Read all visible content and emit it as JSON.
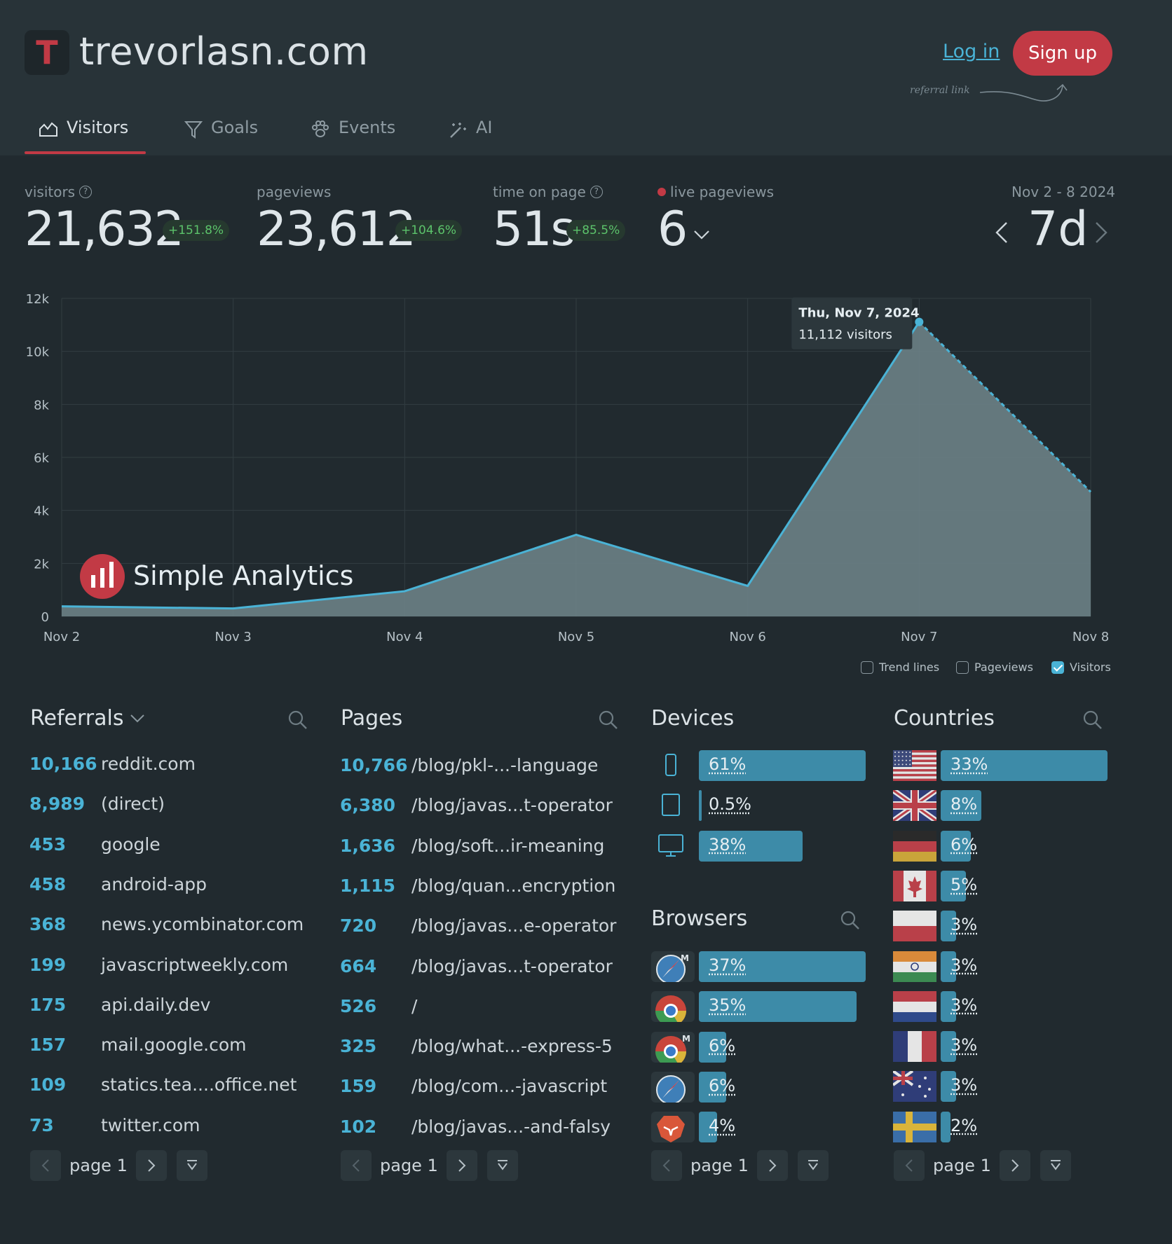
{
  "header": {
    "logo_letter": "T",
    "site": "trevorlasn.com",
    "login": "Log in",
    "signup": "Sign up",
    "referral_note": "referral link"
  },
  "tabs": [
    {
      "label": "Visitors",
      "icon": "chart-icon",
      "active": true
    },
    {
      "label": "Goals",
      "icon": "filter-icon"
    },
    {
      "label": "Events",
      "icon": "paw-icon"
    },
    {
      "label": "AI",
      "icon": "magic-wand-icon"
    }
  ],
  "stats": {
    "visitors": {
      "label": "visitors",
      "value": "21,632",
      "change": "+151.8%"
    },
    "pageviews": {
      "label": "pageviews",
      "value": "23,612",
      "change": "+104.6%"
    },
    "time_on_page": {
      "label": "time on page",
      "value": "51s",
      "change": "+85.5%"
    },
    "live": {
      "label": "live pageviews",
      "value": "6"
    },
    "date_range": "Nov 2 - 8 2024",
    "range": "7d"
  },
  "chart_data": {
    "type": "area",
    "x": [
      "Nov 2",
      "Nov 3",
      "Nov 4",
      "Nov 5",
      "Nov 6",
      "Nov 7",
      "Nov 8"
    ],
    "series": [
      {
        "values": [
          380,
          300,
          950,
          3080,
          1150,
          11112,
          4700
        ]
      }
    ],
    "ylim": [
      0,
      12000
    ],
    "yticks": [
      "0",
      "2k",
      "4k",
      "6k",
      "8k",
      "10k",
      "12k"
    ],
    "grid": true,
    "tooltip": {
      "title": "Thu, Nov 7, 2024",
      "text": "11,112 visitors"
    },
    "watermark": "Simple Analytics"
  },
  "legend": {
    "trend": "Trend lines",
    "pageviews": "Pageviews",
    "visitors": "Visitors"
  },
  "referrals": {
    "title": "Referrals",
    "rows": [
      {
        "count": "10,166",
        "label": "reddit.com"
      },
      {
        "count": "8,989",
        "label": "(direct)"
      },
      {
        "count": "453",
        "label": "google"
      },
      {
        "count": "458",
        "label": "android-app"
      },
      {
        "count": "368",
        "label": "news.ycombinator.com"
      },
      {
        "count": "199",
        "label": "javascriptweekly.com"
      },
      {
        "count": "175",
        "label": "api.daily.dev"
      },
      {
        "count": "157",
        "label": "mail.google.com"
      },
      {
        "count": "109",
        "label": "statics.tea....office.net"
      },
      {
        "count": "73",
        "label": "twitter.com"
      }
    ]
  },
  "pages": {
    "title": "Pages",
    "rows": [
      {
        "count": "10,766",
        "label": "/blog/pkl-...-language"
      },
      {
        "count": "6,380",
        "label": "/blog/javas...t-operator"
      },
      {
        "count": "1,636",
        "label": "/blog/soft...ir-meaning"
      },
      {
        "count": "1,115",
        "label": "/blog/quan...encryption"
      },
      {
        "count": "720",
        "label": "/blog/javas...e-operator"
      },
      {
        "count": "664",
        "label": "/blog/javas...t-operator"
      },
      {
        "count": "526",
        "label": "/"
      },
      {
        "count": "325",
        "label": "/blog/what...-express-5"
      },
      {
        "count": "159",
        "label": "/blog/com...-javascript"
      },
      {
        "count": "102",
        "label": "/blog/javas...-and-falsy"
      }
    ]
  },
  "devices": {
    "title": "Devices",
    "rows": [
      {
        "icon": "phone-icon",
        "pct": "61%",
        "value": 0.61
      },
      {
        "icon": "tablet-icon",
        "pct": "0.5%",
        "value": 0.005
      },
      {
        "icon": "desktop-icon",
        "pct": "38%",
        "value": 0.38
      }
    ]
  },
  "browsers": {
    "title": "Browsers",
    "rows": [
      {
        "icon": "safari-mobile-icon",
        "pct": "37%",
        "value": 0.37
      },
      {
        "icon": "chrome-icon",
        "pct": "35%",
        "value": 0.35
      },
      {
        "icon": "chrome-mobile-icon",
        "pct": "6%",
        "value": 0.06
      },
      {
        "icon": "safari-icon",
        "pct": "6%",
        "value": 0.06
      },
      {
        "icon": "brave-icon",
        "pct": "4%",
        "value": 0.04
      }
    ]
  },
  "countries": {
    "title": "Countries",
    "rows": [
      {
        "icon": "us-flag-icon",
        "pct": "33%",
        "value": 0.33
      },
      {
        "icon": "uk-flag-icon",
        "pct": "8%",
        "value": 0.08
      },
      {
        "icon": "germany-flag-icon",
        "pct": "6%",
        "value": 0.06
      },
      {
        "icon": "canada-flag-icon",
        "pct": "5%",
        "value": 0.05
      },
      {
        "icon": "poland-flag-icon",
        "pct": "3%",
        "value": 0.03
      },
      {
        "icon": "india-flag-icon",
        "pct": "3%",
        "value": 0.03
      },
      {
        "icon": "netherlands-flag-icon",
        "pct": "3%",
        "value": 0.03
      },
      {
        "icon": "france-flag-icon",
        "pct": "3%",
        "value": 0.03
      },
      {
        "icon": "australia-flag-icon",
        "pct": "3%",
        "value": 0.03
      },
      {
        "icon": "sweden-flag-icon",
        "pct": "2%",
        "value": 0.02
      }
    ]
  },
  "pager": {
    "label": "page 1"
  }
}
